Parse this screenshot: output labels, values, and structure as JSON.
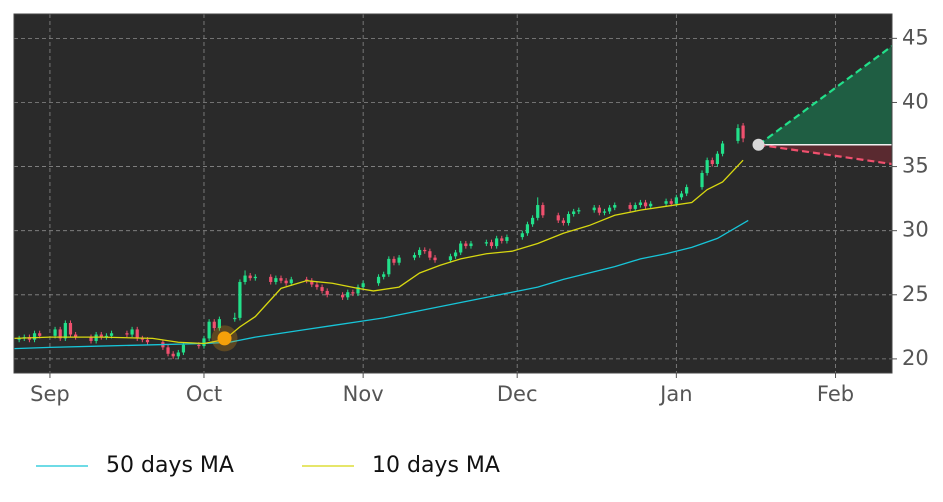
{
  "chart_data": {
    "type": "candlestick",
    "x": [
      -6,
      -5,
      -4,
      -3,
      -2,
      1,
      2,
      3,
      4,
      5,
      8,
      9,
      10,
      11,
      12,
      15,
      16,
      17,
      18,
      19,
      22,
      23,
      24,
      25,
      26,
      29,
      30,
      31,
      32,
      33,
      36,
      37,
      38,
      39,
      40,
      43,
      44,
      45,
      46,
      47,
      50,
      51,
      52,
      53,
      54,
      57,
      58,
      59,
      60,
      61,
      64,
      65,
      66,
      67,
      68,
      71,
      72,
      73,
      74,
      75,
      78,
      79,
      80,
      81,
      82,
      85,
      86,
      87,
      88,
      89,
      92,
      93,
      94,
      95,
      96,
      99,
      100,
      101,
      102,
      103,
      106,
      107,
      108,
      109,
      110,
      113,
      114,
      115,
      116,
      117,
      120,
      121,
      122,
      123,
      124,
      127,
      128,
      129,
      130,
      131,
      134,
      135
    ],
    "open": [
      21.5,
      21.6,
      21.7,
      21.5,
      22.0,
      21.8,
      22.3,
      21.6,
      22.8,
      21.9,
      21.7,
      21.4,
      21.9,
      21.7,
      21.8,
      22.0,
      21.9,
      22.3,
      21.6,
      21.5,
      21.3,
      20.9,
      20.4,
      20.2,
      20.5,
      21.1,
      21.0,
      21.6,
      22.9,
      22.4,
      23.1,
      23.2,
      26.0,
      26.5,
      26.3,
      26.4,
      26.0,
      26.3,
      26.1,
      25.9,
      26.2,
      26.1,
      25.8,
      25.6,
      25.3,
      25.0,
      24.8,
      25.2,
      25.1,
      25.6,
      25.9,
      26.4,
      26.6,
      27.8,
      27.5,
      27.9,
      28.1,
      28.5,
      28.4,
      27.9,
      27.7,
      28.0,
      28.3,
      29.0,
      28.8,
      29.0,
      29.1,
      28.8,
      29.4,
      29.2,
      29.5,
      29.8,
      30.5,
      31.0,
      32.0,
      31.2,
      30.8,
      30.6,
      31.3,
      31.5,
      31.6,
      31.8,
      31.4,
      31.5,
      31.8,
      32.0,
      31.7,
      32.0,
      32.2,
      31.9,
      32.1,
      32.3,
      32.1,
      32.6,
      32.9,
      33.4,
      34.5,
      35.5,
      35.2,
      36.0,
      37.0,
      38.2
    ],
    "high": [
      21.8,
      21.9,
      21.9,
      22.2,
      22.2,
      22.5,
      22.5,
      23.0,
      23.0,
      22.1,
      21.9,
      22.1,
      22.1,
      22.0,
      22.2,
      22.2,
      22.5,
      22.5,
      21.8,
      21.7,
      21.5,
      21.1,
      20.6,
      20.7,
      21.3,
      21.3,
      21.8,
      23.1,
      23.1,
      23.3,
      23.6,
      26.2,
      26.9,
      26.7,
      26.6,
      26.6,
      26.5,
      26.5,
      26.3,
      26.4,
      26.4,
      26.3,
      26.0,
      25.8,
      25.5,
      25.2,
      25.4,
      25.4,
      25.8,
      26.1,
      26.6,
      26.8,
      28.0,
      28.0,
      28.1,
      28.3,
      28.7,
      28.7,
      28.6,
      28.1,
      28.2,
      28.5,
      29.2,
      29.2,
      29.2,
      29.3,
      29.3,
      29.6,
      29.6,
      29.7,
      30.0,
      30.7,
      31.2,
      32.6,
      32.2,
      31.4,
      31.0,
      31.5,
      31.7,
      31.8,
      32.0,
      32.0,
      31.7,
      32.0,
      32.2,
      32.2,
      32.2,
      32.4,
      32.4,
      32.3,
      32.5,
      32.5,
      32.8,
      33.1,
      33.6,
      34.7,
      35.7,
      35.7,
      36.2,
      37.0,
      38.3,
      38.4
    ],
    "low": [
      21.3,
      21.4,
      21.3,
      21.3,
      21.6,
      21.6,
      21.4,
      21.4,
      21.7,
      21.5,
      21.2,
      21.2,
      21.5,
      21.5,
      21.6,
      21.7,
      21.7,
      21.4,
      21.3,
      21.1,
      20.7,
      20.2,
      20.0,
      20.0,
      20.3,
      20.8,
      20.8,
      21.4,
      22.2,
      22.2,
      22.9,
      23.0,
      25.8,
      26.1,
      26.1,
      25.8,
      25.8,
      25.9,
      25.7,
      25.7,
      25.9,
      25.6,
      25.4,
      25.1,
      24.8,
      24.6,
      24.6,
      24.9,
      24.9,
      25.4,
      25.7,
      26.2,
      26.4,
      27.3,
      27.3,
      27.7,
      27.9,
      28.2,
      27.7,
      27.5,
      27.5,
      27.8,
      28.1,
      28.6,
      28.6,
      28.8,
      28.6,
      28.6,
      29.0,
      29.0,
      29.3,
      29.6,
      30.3,
      30.8,
      31.0,
      30.6,
      30.4,
      30.4,
      31.1,
      31.3,
      31.4,
      31.2,
      31.2,
      31.3,
      31.6,
      31.5,
      31.5,
      31.8,
      31.7,
      31.7,
      31.9,
      31.9,
      31.9,
      32.4,
      32.7,
      33.2,
      34.3,
      35.0,
      35.0,
      35.8,
      36.8,
      36.9
    ],
    "close": [
      21.6,
      21.7,
      21.5,
      22.0,
      21.8,
      22.3,
      21.6,
      22.8,
      21.9,
      21.7,
      21.4,
      21.9,
      21.7,
      21.8,
      22.0,
      21.9,
      22.3,
      21.6,
      21.5,
      21.3,
      20.9,
      20.4,
      20.2,
      20.5,
      21.1,
      21.0,
      21.6,
      22.9,
      22.4,
      23.1,
      23.2,
      26.0,
      26.5,
      26.3,
      26.4,
      26.0,
      26.3,
      26.1,
      25.9,
      26.2,
      26.1,
      25.8,
      25.6,
      25.3,
      25.0,
      24.8,
      25.2,
      25.1,
      25.6,
      25.9,
      26.4,
      26.6,
      27.8,
      27.5,
      27.9,
      28.1,
      28.5,
      28.4,
      27.9,
      27.7,
      28.0,
      28.3,
      29.0,
      28.8,
      29.0,
      29.1,
      28.8,
      29.4,
      29.2,
      29.5,
      29.8,
      30.5,
      31.0,
      32.0,
      31.2,
      30.8,
      30.6,
      31.3,
      31.5,
      31.6,
      31.8,
      31.4,
      31.5,
      31.8,
      32.0,
      31.7,
      32.0,
      32.2,
      31.9,
      32.1,
      32.3,
      32.1,
      32.6,
      32.9,
      33.4,
      34.5,
      35.5,
      35.2,
      36.0,
      36.8,
      38.0,
      37.2
    ],
    "up_color": "#22e08a",
    "down_color": "#f0506e",
    "series": [
      {
        "name": "50 days MA",
        "color": "#17c5d8",
        "x": [
          -7,
          0,
          10,
          20,
          30,
          35,
          40,
          45,
          50,
          55,
          60,
          65,
          70,
          75,
          80,
          85,
          90,
          95,
          100,
          105,
          110,
          115,
          120,
          125,
          130,
          136
        ],
        "values": [
          20.8,
          20.9,
          21.0,
          21.1,
          21.2,
          21.3,
          21.7,
          22.0,
          22.3,
          22.6,
          22.9,
          23.2,
          23.6,
          24.0,
          24.4,
          24.8,
          25.2,
          25.6,
          26.2,
          26.7,
          27.2,
          27.8,
          28.2,
          28.7,
          29.4,
          30.8
        ]
      },
      {
        "name": "10 days MA",
        "color": "#d8d810",
        "x": [
          -7,
          0,
          10,
          20,
          25,
          30,
          34,
          37,
          40,
          45,
          50,
          55,
          60,
          63,
          68,
          72,
          76,
          80,
          85,
          90,
          95,
          100,
          105,
          110,
          115,
          120,
          125,
          128,
          131,
          135
        ],
        "values": [
          21.6,
          21.7,
          21.7,
          21.6,
          21.3,
          21.2,
          21.5,
          22.5,
          23.3,
          25.5,
          26.1,
          25.9,
          25.5,
          25.3,
          25.6,
          26.7,
          27.3,
          27.8,
          28.2,
          28.4,
          29.0,
          29.8,
          30.4,
          31.2,
          31.6,
          31.9,
          32.2,
          33.2,
          33.8,
          35.5
        ]
      }
    ],
    "signal": {
      "x": 34,
      "y": 21.6,
      "color": "#f5a00a"
    },
    "forecast": {
      "start": {
        "x": 138,
        "y": 36.7
      },
      "up": {
        "x": 164,
        "y": 44.4,
        "color": "#22e08a"
      },
      "down": {
        "x": 164,
        "y": 35.2,
        "color": "#f0506e"
      }
    },
    "xlim": [
      -7,
      164
    ],
    "ylim": [
      18.9,
      46.9
    ],
    "xticks": [
      {
        "value": 0,
        "label": "Sep"
      },
      {
        "value": 30,
        "label": "Oct"
      },
      {
        "value": 61,
        "label": "Nov"
      },
      {
        "value": 91,
        "label": "Dec"
      },
      {
        "value": 122,
        "label": "Jan"
      },
      {
        "value": 153,
        "label": "Feb"
      }
    ],
    "yticks": [
      20,
      25,
      30,
      35,
      40,
      45
    ],
    "grid": true
  }
}
